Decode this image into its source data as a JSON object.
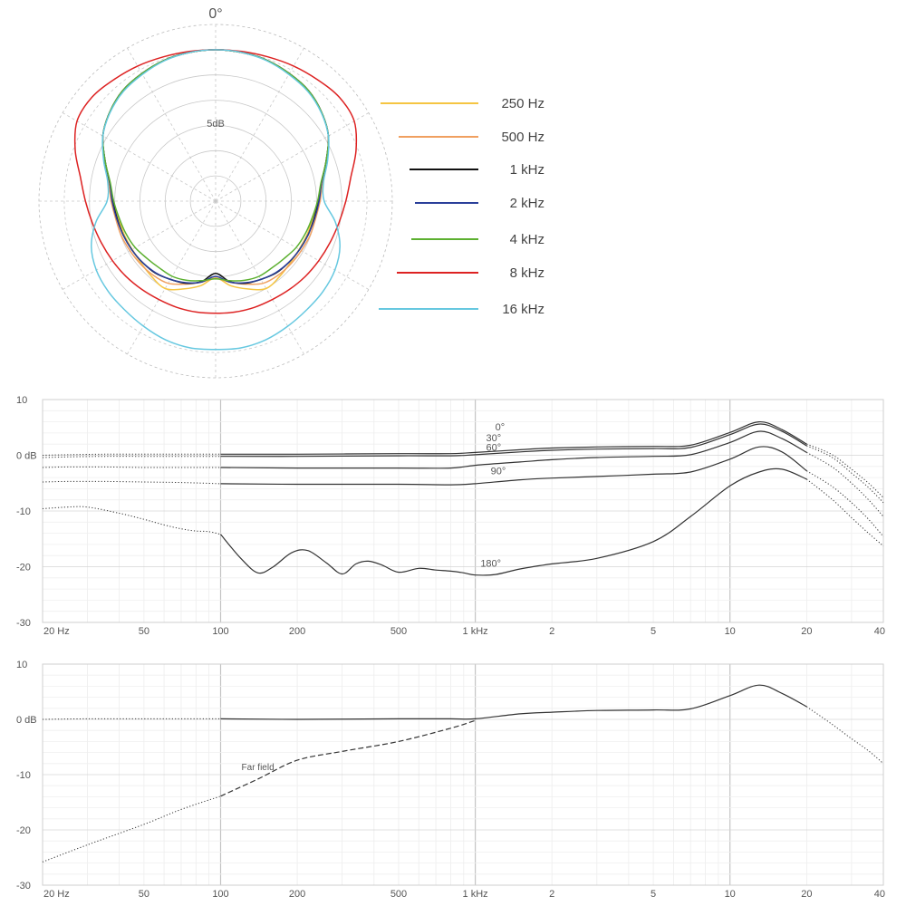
{
  "chart_data": [
    {
      "type": "polar",
      "top_label": "0°",
      "ring_label": "5dB",
      "legend_placement": "right",
      "series": [
        {
          "name": "250 Hz",
          "color": "#f5c542",
          "r": [
            30,
            29.9,
            29.7,
            29.2,
            28.6,
            27.4,
            25.8,
            23.3,
            21.3,
            20.3,
            19.5,
            19.3,
            19.1,
            19.2,
            19.6,
            20.0,
            18.5,
            17.0,
            15.2,
            17.0,
            18.5,
            20.0,
            19.6,
            19.2,
            19.1,
            19.3,
            19.5,
            20.3,
            21.3,
            23.3,
            25.8,
            27.4,
            28.6,
            29.2,
            29.7,
            29.9
          ]
        },
        {
          "name": "500 Hz",
          "color": "#f0a060",
          "r": [
            30,
            29.9,
            29.7,
            29.2,
            28.6,
            27.4,
            25.8,
            23.3,
            21.5,
            20.7,
            20.1,
            19.9,
            19.6,
            19.4,
            19.2,
            18.8,
            17.5,
            16.3,
            15.3,
            16.3,
            17.5,
            18.8,
            19.2,
            19.4,
            19.6,
            19.9,
            20.1,
            20.7,
            21.5,
            23.3,
            25.8,
            27.4,
            28.6,
            29.2,
            29.7,
            29.9
          ]
        },
        {
          "name": "1 kHz",
          "color": "#111111",
          "r": [
            30,
            29.9,
            29.7,
            29.2,
            28.6,
            27.4,
            25.8,
            23.3,
            21.3,
            20.4,
            19.8,
            19.5,
            19.2,
            18.9,
            18.6,
            17.9,
            17.3,
            16.2,
            14.3,
            16.2,
            17.3,
            17.9,
            18.6,
            18.9,
            19.2,
            19.5,
            19.8,
            20.4,
            21.3,
            23.3,
            25.8,
            27.4,
            28.6,
            29.2,
            29.7,
            29.9
          ]
        },
        {
          "name": "2 kHz",
          "color": "#2a3f9a",
          "r": [
            30,
            29.9,
            29.7,
            29.2,
            28.6,
            27.4,
            25.8,
            23.3,
            21.3,
            20.5,
            19.9,
            19.5,
            19.2,
            18.9,
            18.5,
            17.9,
            17.2,
            16.3,
            14.9,
            16.3,
            17.2,
            17.9,
            18.5,
            18.9,
            19.2,
            19.5,
            19.9,
            20.5,
            21.3,
            23.3,
            25.8,
            27.4,
            28.6,
            29.2,
            29.7,
            29.9
          ]
        },
        {
          "name": "4 kHz",
          "color": "#5cb030",
          "r": [
            30,
            29.9,
            29.7,
            29.2,
            28.6,
            27.4,
            25.8,
            23.3,
            21.2,
            20.2,
            19.4,
            18.9,
            18.4,
            17.7,
            17.3,
            17.2,
            16.7,
            16.0,
            15.4,
            16.0,
            16.7,
            17.2,
            17.3,
            17.7,
            18.4,
            18.9,
            19.4,
            20.2,
            21.2,
            23.3,
            25.8,
            27.4,
            28.6,
            29.2,
            29.7,
            29.9
          ]
        },
        {
          "name": "8 kHz",
          "color": "#dd2222",
          "r": [
            30,
            30.1,
            30.4,
            30.9,
            31.4,
            32.0,
            31.7,
            29.6,
            27.2,
            25.8,
            24.8,
            24.1,
            23.6,
            23.2,
            22.8,
            22.5,
            22.4,
            22.3,
            22.2,
            22.3,
            22.4,
            22.5,
            22.8,
            23.2,
            23.6,
            24.1,
            24.8,
            25.8,
            27.2,
            29.6,
            31.7,
            32.0,
            31.4,
            30.9,
            30.4,
            30.1
          ]
        },
        {
          "name": "16 kHz",
          "color": "#66c8e0",
          "r": [
            30,
            29.9,
            29.6,
            29.0,
            28.4,
            27.3,
            25.8,
            23.6,
            21.7,
            21.5,
            24.1,
            26.2,
            27.3,
            27.8,
            28.1,
            28.6,
            29.2,
            29.5,
            29.4,
            29.5,
            29.2,
            28.6,
            28.1,
            27.8,
            27.3,
            26.2,
            24.1,
            21.5,
            21.7,
            23.6,
            25.8,
            27.3,
            28.4,
            29.0,
            29.6,
            29.9
          ]
        }
      ]
    },
    {
      "type": "line",
      "title": "",
      "x_scale": "log",
      "xlim": [
        20,
        40000
      ],
      "ylim": [
        -30,
        10
      ],
      "x_tick_labels": [
        {
          "x": 20,
          "label": "20 Hz"
        },
        {
          "x": 50,
          "label": "50"
        },
        {
          "x": 100,
          "label": "100"
        },
        {
          "x": 200,
          "label": "200"
        },
        {
          "x": 500,
          "label": "500"
        },
        {
          "x": 1000,
          "label": "1 kHz"
        },
        {
          "x": 2000,
          "label": "2"
        },
        {
          "x": 5000,
          "label": "5"
        },
        {
          "x": 10000,
          "label": "10"
        },
        {
          "x": 20000,
          "label": "20"
        },
        {
          "x": 40000,
          "label": "40"
        }
      ],
      "y_tick_labels": [
        {
          "y": 10,
          "label": "10"
        },
        {
          "y": 0,
          "label": "0 dB"
        },
        {
          "y": -10,
          "label": "-10"
        },
        {
          "y": -20,
          "label": "-20"
        },
        {
          "y": -30,
          "label": "-30"
        }
      ],
      "grid": true,
      "series": [
        {
          "name": "0°",
          "label_at": [
            1250,
            4.5
          ],
          "x": [
            20,
            25,
            35,
            50,
            70,
            100,
            200,
            500,
            800,
            1000,
            1500,
            2000,
            3000,
            5000,
            7000,
            10000,
            13000,
            16000,
            20000,
            25000,
            30000,
            35000,
            40000
          ],
          "y": [
            0,
            0.1,
            0.2,
            0.2,
            0.2,
            0.2,
            0.2,
            0.3,
            0.3,
            0.5,
            1.0,
            1.3,
            1.5,
            1.6,
            1.8,
            4.1,
            6.0,
            4.6,
            2.0,
            0.2,
            -2.5,
            -5,
            -7.6
          ]
        },
        {
          "name": "30°",
          "label_at": [
            1180,
            2.5
          ],
          "x": [
            20,
            25,
            35,
            50,
            70,
            100,
            200,
            500,
            800,
            1000,
            1500,
            2000,
            3000,
            5000,
            7000,
            10000,
            13000,
            16000,
            20000,
            25000,
            30000,
            35000,
            40000
          ],
          "y": [
            -0.4,
            -0.3,
            -0.2,
            -0.2,
            -0.2,
            -0.2,
            -0.2,
            -0.1,
            -0.1,
            0.1,
            0.6,
            0.9,
            1.1,
            1.2,
            1.4,
            3.7,
            5.6,
            4.3,
            1.7,
            -0.3,
            -3.2,
            -5.8,
            -8.5
          ]
        },
        {
          "name": "60°",
          "label_at": [
            1180,
            0.8
          ],
          "x": [
            20,
            25,
            35,
            50,
            70,
            100,
            200,
            500,
            800,
            1000,
            1500,
            2000,
            3000,
            5000,
            7000,
            10000,
            13000,
            16000,
            20000,
            25000,
            30000,
            35000,
            40000
          ],
          "y": [
            -2.2,
            -2.1,
            -2.1,
            -2.2,
            -2.2,
            -2.2,
            -2.3,
            -2.3,
            -2.3,
            -1.8,
            -1.2,
            -0.8,
            -0.4,
            -0.2,
            0.1,
            2.3,
            4.3,
            3.0,
            0.5,
            -2.0,
            -5.0,
            -8.0,
            -11.0
          ]
        },
        {
          "name": "90°",
          "label_at": [
            1230,
            -3.4
          ],
          "x": [
            20,
            25,
            35,
            50,
            70,
            100,
            200,
            500,
            800,
            1000,
            1500,
            2000,
            3000,
            5000,
            7000,
            10000,
            13000,
            16000,
            20000,
            25000,
            30000,
            35000,
            40000
          ],
          "y": [
            -4.8,
            -4.7,
            -4.7,
            -4.8,
            -4.9,
            -5.1,
            -5.2,
            -5.2,
            -5.3,
            -5.1,
            -4.4,
            -4.1,
            -3.8,
            -3.4,
            -3.0,
            -0.7,
            1.5,
            0.6,
            -2.8,
            -5.5,
            -8.5,
            -11.5,
            -14.6
          ]
        },
        {
          "name": "180°",
          "label_at": [
            1150,
            -20.0
          ],
          "x": [
            20,
            25,
            30,
            40,
            50,
            60,
            70,
            80,
            90,
            100,
            120,
            140,
            160,
            190,
            220,
            260,
            300,
            340,
            380,
            430,
            500,
            600,
            700,
            800,
            900,
            1000,
            1200,
            1500,
            2000,
            3000,
            5000,
            7000,
            10000,
            13000,
            16000,
            20000,
            25000,
            30000,
            35000,
            40000
          ],
          "y": [
            -9.6,
            -9.3,
            -9.3,
            -10.4,
            -11.5,
            -12.5,
            -13.2,
            -13.6,
            -13.7,
            -14.2,
            -18.5,
            -21.1,
            -20.1,
            -17.5,
            -17.1,
            -19.3,
            -21.3,
            -19.5,
            -19.0,
            -19.7,
            -21.0,
            -20.3,
            -20.6,
            -20.8,
            -21.1,
            -21.5,
            -21.4,
            -20.4,
            -19.5,
            -18.5,
            -15.5,
            -11.0,
            -5.5,
            -3.0,
            -2.5,
            -4.3,
            -7.8,
            -11.2,
            -14.0,
            -16.3
          ]
        }
      ]
    },
    {
      "type": "line",
      "title": "",
      "x_scale": "log",
      "xlim": [
        20,
        40000
      ],
      "ylim": [
        -30,
        10
      ],
      "x_tick_labels": [
        {
          "x": 20,
          "label": "20 Hz"
        },
        {
          "x": 50,
          "label": "50"
        },
        {
          "x": 100,
          "label": "100"
        },
        {
          "x": 200,
          "label": "200"
        },
        {
          "x": 500,
          "label": "500"
        },
        {
          "x": 1000,
          "label": "1 kHz"
        },
        {
          "x": 2000,
          "label": "2"
        },
        {
          "x": 5000,
          "label": "5"
        },
        {
          "x": 10000,
          "label": "10"
        },
        {
          "x": 20000,
          "label": "20"
        },
        {
          "x": 40000,
          "label": "40"
        }
      ],
      "y_tick_labels": [
        {
          "y": 10,
          "label": "10"
        },
        {
          "y": 0,
          "label": "0 dB"
        },
        {
          "y": -10,
          "label": "-10"
        },
        {
          "y": -20,
          "label": "-20"
        },
        {
          "y": -30,
          "label": "-30"
        }
      ],
      "grid": true,
      "annotation": {
        "text": "Far field",
        "at": [
          140,
          -9.2
        ]
      },
      "series": [
        {
          "name": "",
          "style": "solid-near",
          "x": [
            20,
            30,
            50,
            70,
            100,
            200,
            500,
            800,
            1000,
            1500,
            2000,
            3000,
            5000,
            7000,
            10000,
            13000,
            16000,
            20000,
            25000,
            30000,
            35000,
            40000
          ],
          "y": [
            0,
            0.1,
            0.1,
            0.1,
            0.1,
            0.0,
            0.1,
            0.1,
            0.1,
            1.0,
            1.3,
            1.6,
            1.7,
            1.9,
            4.3,
            6.2,
            4.7,
            2.3,
            -0.8,
            -3.5,
            -5.7,
            -8.0
          ]
        },
        {
          "name": "Far field",
          "style": "dashed",
          "x": [
            20,
            30,
            50,
            70,
            100,
            140,
            200,
            300,
            500,
            800,
            1000
          ],
          "y": [
            -25.8,
            -22.7,
            -19,
            -16.3,
            -13.9,
            -10.8,
            -7.4,
            -5.8,
            -4.0,
            -1.6,
            -0.2
          ]
        }
      ]
    }
  ]
}
